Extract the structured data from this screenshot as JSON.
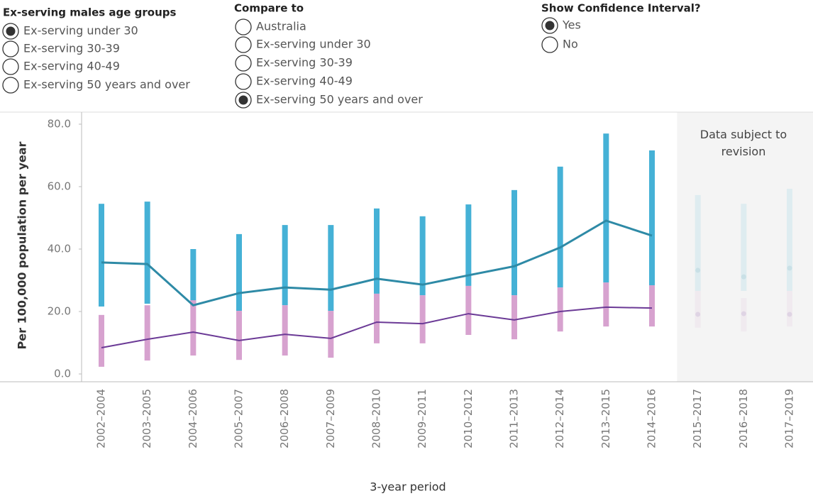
{
  "controls": [
    {
      "title": "Ex-serving males age groups",
      "options": [
        "Ex-serving under 30",
        "Ex-serving 30-39",
        "Ex-serving 40-49",
        "Ex-serving 50 years and over"
      ],
      "selected": 0
    },
    {
      "title": "Compare to",
      "options": [
        "Australia",
        "Ex-serving under 30",
        "Ex-serving 30-39",
        "Ex-serving 40-49",
        "Ex-serving 50 years and over"
      ],
      "selected": 4
    },
    {
      "title": "Show Confidence Interval?",
      "options": [
        "Yes",
        "No"
      ],
      "selected": 0
    }
  ],
  "chart_data": {
    "type": "line",
    "y_label": "Per 100,000 population per year",
    "x_label": "3-year period",
    "categories": [
      "2002–2004",
      "2003–2005",
      "2004–2006",
      "2005–2007",
      "2006–2008",
      "2007–2009",
      "2008–2010",
      "2009–2011",
      "2010–2012",
      "2011–2013",
      "2012–2014",
      "2013–2015",
      "2014–2016",
      "2015–2017",
      "2016–2018",
      "2017–2019"
    ],
    "ylim": [
      0,
      80
    ],
    "yticks": [
      {
        "value": 0,
        "label": "0.0"
      },
      {
        "value": 20,
        "label": "20.0"
      },
      {
        "value": 40,
        "label": "40.0"
      },
      {
        "value": 60,
        "label": "60.0"
      },
      {
        "value": 80,
        "label": "80.0"
      }
    ],
    "revision_region": {
      "label": "Data subject to revision",
      "from": "2015–2017"
    },
    "series": [
      {
        "color": "#2e8aa6",
        "ci_color": "#45b1d6",
        "values": [
          35.7,
          35.2,
          22.0,
          25.9,
          27.7,
          27.0,
          30.5,
          28.6,
          31.6,
          34.5,
          40.5,
          49.1,
          44.3,
          33.2,
          31.1,
          33.9
        ],
        "ci_low": [
          21.6,
          22.5,
          21.6,
          20.2,
          22.0,
          20.2,
          25.7,
          25.2,
          28.2,
          25.2,
          27.7,
          29.3,
          28.4,
          26.6,
          26.6,
          26.6
        ],
        "ci_high": [
          54.5,
          55.2,
          40.0,
          44.8,
          47.7,
          47.7,
          53.0,
          50.5,
          54.3,
          58.9,
          66.4,
          77.0,
          71.6,
          57.3,
          54.5,
          59.3
        ]
      },
      {
        "color": "#6b3a96",
        "ci_color": "#d7a2cf",
        "values": [
          8.4,
          11.1,
          13.4,
          10.7,
          12.7,
          11.4,
          16.6,
          16.1,
          19.3,
          17.3,
          20.0,
          21.4,
          21.1,
          19.1,
          19.3,
          19.1
        ],
        "ci_low": [
          2.3,
          4.3,
          5.9,
          4.5,
          5.9,
          5.2,
          9.8,
          9.8,
          12.5,
          11.1,
          13.6,
          15.2,
          15.2,
          14.8,
          13.6,
          15.2
        ],
        "ci_high": [
          18.9,
          22.0,
          23.6,
          20.2,
          22.0,
          20.2,
          25.7,
          25.2,
          28.2,
          25.2,
          27.7,
          29.3,
          28.4,
          26.6,
          24.3,
          26.6
        ]
      }
    ]
  }
}
